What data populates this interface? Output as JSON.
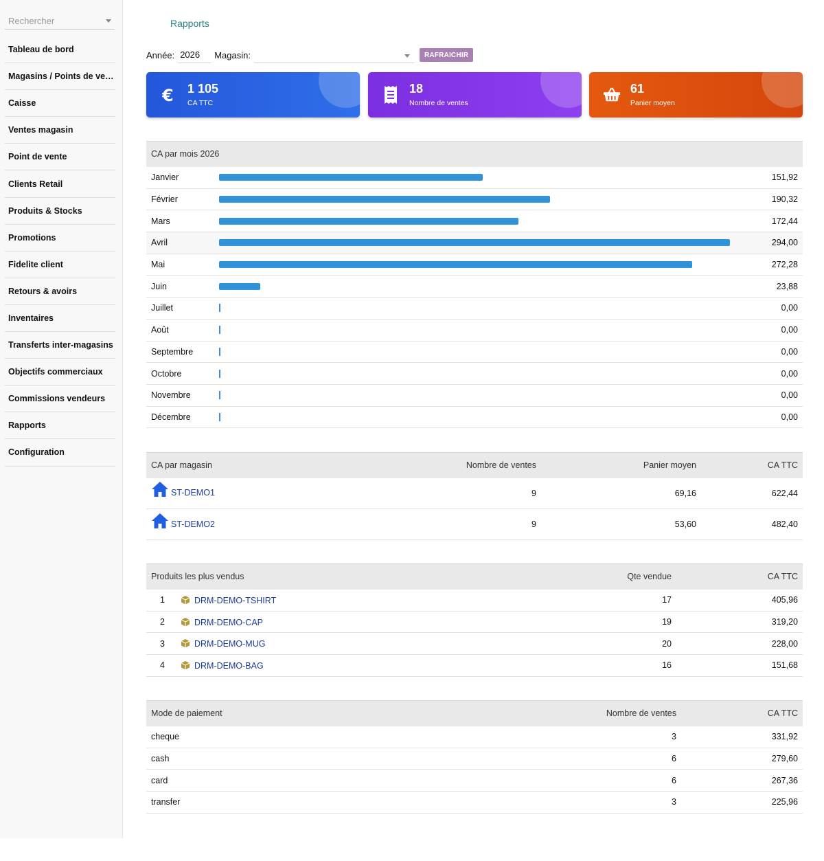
{
  "sidebar": {
    "search_placeholder": "Rechercher",
    "items": [
      "Tableau de bord",
      "Magasins / Points de vente",
      "Caisse",
      "Ventes magasin",
      "Point de vente",
      "Clients Retail",
      "Produits & Stocks",
      "Promotions",
      "Fidelite client",
      "Retours & avoirs",
      "Inventaires",
      "Transferts inter-magasins",
      "Objectifs commerciaux",
      "Commissions vendeurs",
      "Rapports",
      "Configuration"
    ]
  },
  "breadcrumb": "Rapports",
  "filters": {
    "year_label": "Année:",
    "year_value": "2026",
    "store_label": "Magasin:",
    "refresh_label": "RAFRAICHIR"
  },
  "kpis": [
    {
      "value": "1 105",
      "label": "CA TTC",
      "icon": "euro-icon",
      "color": "#2457dc"
    },
    {
      "value": "18",
      "label": "Nombre de ventes",
      "icon": "receipt-icon",
      "color": "#7c2fe0"
    },
    {
      "value": "61",
      "label": "Panier moyen",
      "icon": "basket-icon",
      "color": "#e4590f"
    }
  ],
  "monthly": {
    "title": "CA par mois 2026",
    "max": 294.0,
    "rows": [
      {
        "month": "Janvier",
        "value": 151.92,
        "display": "151,92"
      },
      {
        "month": "Février",
        "value": 190.32,
        "display": "190,32"
      },
      {
        "month": "Mars",
        "value": 172.44,
        "display": "172,44"
      },
      {
        "month": "Avril",
        "value": 294.0,
        "display": "294,00"
      },
      {
        "month": "Mai",
        "value": 272.28,
        "display": "272,28"
      },
      {
        "month": "Juin",
        "value": 23.88,
        "display": "23,88"
      },
      {
        "month": "Juillet",
        "value": 0,
        "display": "0,00"
      },
      {
        "month": "Août",
        "value": 0,
        "display": "0,00"
      },
      {
        "month": "Septembre",
        "value": 0,
        "display": "0,00"
      },
      {
        "month": "Octobre",
        "value": 0,
        "display": "0,00"
      },
      {
        "month": "Novembre",
        "value": 0,
        "display": "0,00"
      },
      {
        "month": "Décembre",
        "value": 0,
        "display": "0,00"
      }
    ]
  },
  "stores": {
    "headers": [
      "CA par magasin",
      "Nombre de ventes",
      "Panier moyen",
      "CA TTC"
    ],
    "rows": [
      {
        "name": "ST-DEMO1",
        "sales": "9",
        "basket": "69,16",
        "ca": "622,44"
      },
      {
        "name": "ST-DEMO2",
        "sales": "9",
        "basket": "53,60",
        "ca": "482,40"
      }
    ]
  },
  "products": {
    "headers": [
      "Produits les plus vendus",
      "Qte vendue",
      "CA TTC"
    ],
    "rows": [
      {
        "rank": "1",
        "name": "DRM-DEMO-TSHIRT",
        "qty": "17",
        "ca": "405,96"
      },
      {
        "rank": "2",
        "name": "DRM-DEMO-CAP",
        "qty": "19",
        "ca": "319,20"
      },
      {
        "rank": "3",
        "name": "DRM-DEMO-MUG",
        "qty": "20",
        "ca": "228,00"
      },
      {
        "rank": "4",
        "name": "DRM-DEMO-BAG",
        "qty": "16",
        "ca": "151,68"
      }
    ]
  },
  "payments": {
    "headers": [
      "Mode de paiement",
      "Nombre de ventes",
      "CA TTC"
    ],
    "rows": [
      {
        "mode": "cheque",
        "count": "3",
        "ca": "331,92"
      },
      {
        "mode": "cash",
        "count": "6",
        "ca": "279,60"
      },
      {
        "mode": "card",
        "count": "6",
        "ca": "267,36"
      },
      {
        "mode": "transfer",
        "count": "3",
        "ca": "225,96"
      }
    ]
  }
}
